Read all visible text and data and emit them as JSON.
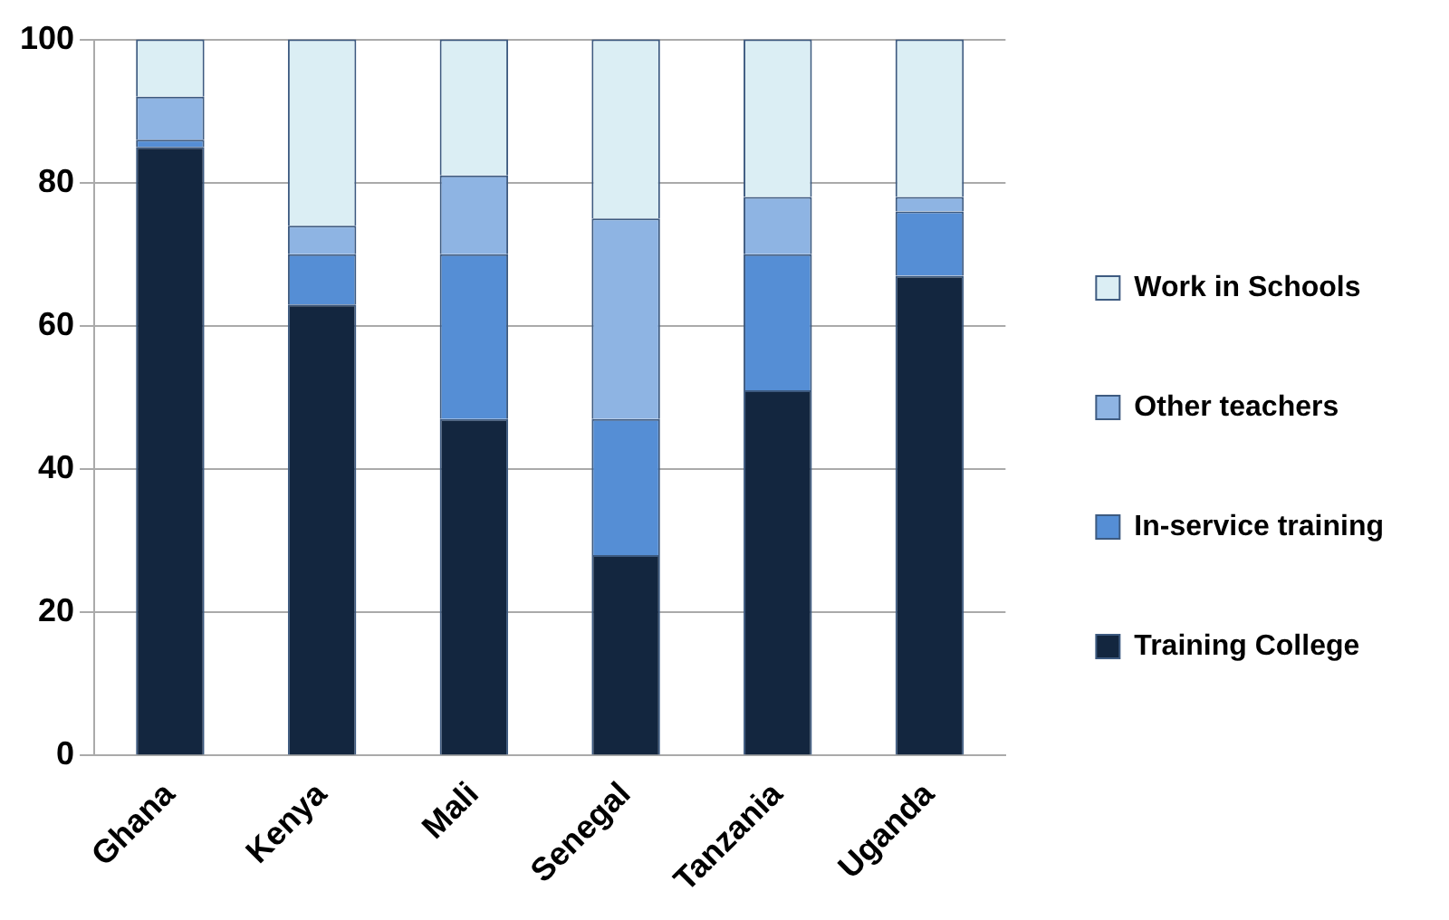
{
  "chart_data": {
    "type": "bar",
    "stacked": true,
    "categories": [
      "Ghana",
      "Kenya",
      "Mali",
      "Senegal",
      "Tanzania",
      "Uganda"
    ],
    "series": [
      {
        "name": "Training College",
        "color": "#13263f",
        "values": [
          85,
          63,
          47,
          28,
          51,
          67
        ]
      },
      {
        "name": "In-service training",
        "color": "#558ed5",
        "values": [
          1,
          7,
          23,
          19,
          19,
          9
        ]
      },
      {
        "name": "Other teachers",
        "color": "#8eb4e3",
        "values": [
          6,
          4,
          11,
          28,
          8,
          2
        ]
      },
      {
        "name": "Work in Schools",
        "color": "#dbeef4",
        "values": [
          8,
          26,
          19,
          25,
          22,
          22
        ]
      }
    ],
    "ylim": [
      0,
      100
    ],
    "yticks": [
      0,
      20,
      40,
      60,
      80,
      100
    ],
    "grid": "y",
    "legend": "right"
  }
}
